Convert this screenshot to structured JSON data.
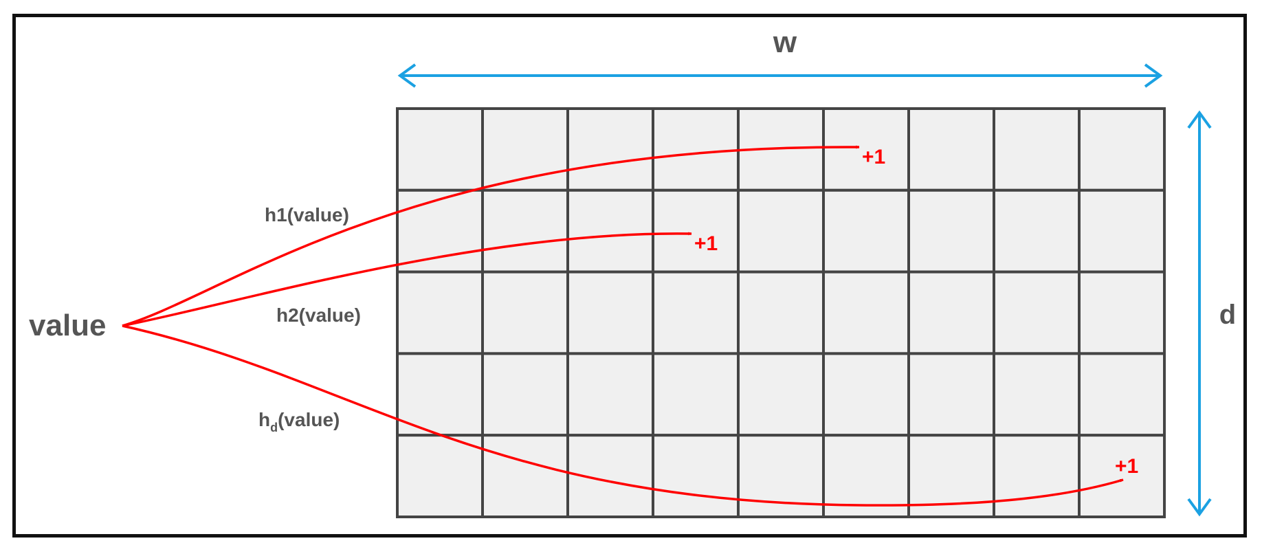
{
  "diagram": {
    "grid": {
      "rows": 5,
      "cols": 9
    },
    "labels": {
      "width": "w",
      "depth": "d",
      "input": "value",
      "hash1": "h1(value)",
      "hash2": "h2(value)",
      "hashd_base": "h",
      "hashd_sub": "d",
      "hashd_rest": "(value)"
    },
    "increments": [
      "+1",
      "+1",
      "+1"
    ],
    "colors": {
      "frame": "#111111",
      "grid_line": "#444444",
      "cell_fill": "#f0f0f0",
      "dimension_arrow": "#1ba1e2",
      "hash_arrow": "#ff0000",
      "label_text": "#555555"
    }
  }
}
